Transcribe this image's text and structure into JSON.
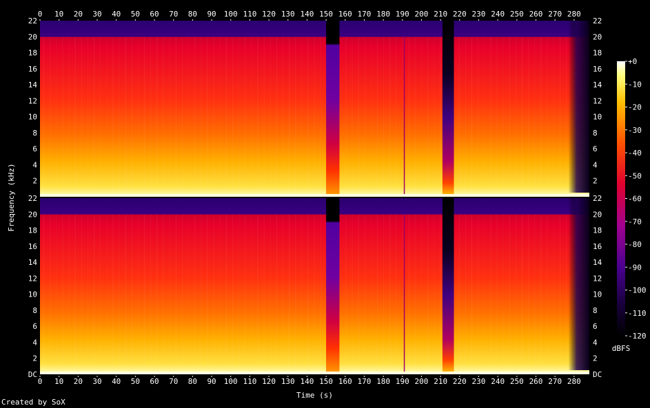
{
  "chart_data": {
    "type": "heatmap",
    "xlabel": "Time (s)",
    "ylabel": "Frequency (kHz)",
    "x_ticks": [
      "0",
      "10",
      "20",
      "30",
      "40",
      "50",
      "60",
      "70",
      "80",
      "90",
      "100",
      "110",
      "120",
      "130",
      "140",
      "150",
      "160",
      "170",
      "180",
      "190",
      "200",
      "210",
      "220",
      "230",
      "240",
      "250",
      "260",
      "270",
      "280"
    ],
    "y_ticks": [
      "DC",
      "2",
      "4",
      "6",
      "8",
      "10",
      "12",
      "14",
      "16",
      "18",
      "20",
      "22"
    ],
    "xlim": [
      0,
      288
    ],
    "ylim": [
      0,
      22
    ],
    "channels": 2,
    "colorbar": {
      "label": "dBFS",
      "ticks": [
        "+0",
        "-10",
        "-20",
        "-30",
        "-40",
        "-50",
        "-60",
        "-70",
        "-80",
        "-90",
        "-100",
        "-110",
        "-120"
      ],
      "range": [
        -120,
        0
      ]
    },
    "features": {
      "lowpass_cutoff_khz": 20,
      "quiet_segment_s": [
        150,
        157
      ],
      "quiet_cutoff_khz": 19,
      "dark_gap_s": [
        211,
        217
      ],
      "fade_out_s": [
        277,
        288
      ],
      "transient_s": 191
    }
  },
  "credit": "Created by SoX"
}
